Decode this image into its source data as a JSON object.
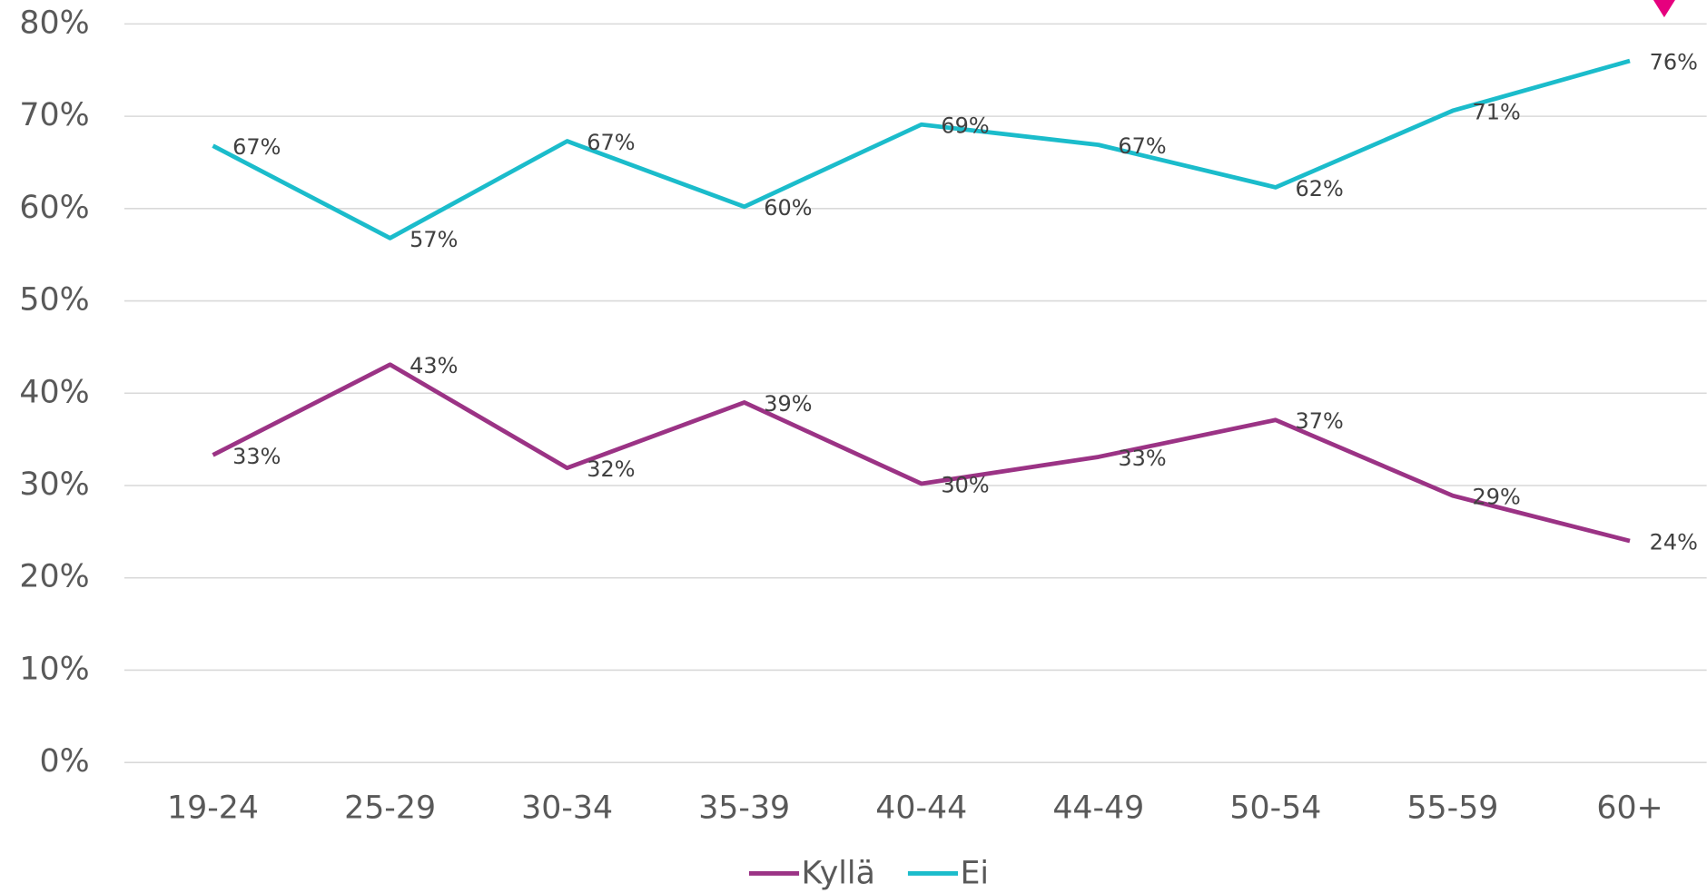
{
  "chart_data": {
    "type": "line",
    "categories": [
      "19-24",
      "25-29",
      "30-34",
      "35-39",
      "40-44",
      "44-49",
      "50-54",
      "55-59",
      "60+"
    ],
    "series": [
      {
        "name": "Kyllä",
        "color": "#9b3385",
        "values": [
          33.3,
          43.1,
          31.9,
          39.0,
          30.2,
          33.1,
          37.1,
          28.9,
          24.0
        ],
        "value_labels": [
          "33%",
          "43%",
          "32%",
          "39%",
          "30%",
          "33%",
          "37%",
          "29%",
          "24%"
        ]
      },
      {
        "name": "Ei",
        "color": "#1bbccb",
        "values": [
          66.8,
          56.8,
          67.3,
          60.2,
          69.1,
          66.9,
          62.3,
          70.6,
          76.0
        ],
        "value_labels": [
          "67%",
          "57%",
          "67%",
          "60%",
          "69%",
          "67%",
          "62%",
          "71%",
          "76%"
        ]
      }
    ],
    "ylim": [
      0,
      80
    ],
    "yticks": [
      {
        "value": 0,
        "label": "0%"
      },
      {
        "value": 10,
        "label": "10%"
      },
      {
        "value": 20,
        "label": "20%"
      },
      {
        "value": 30,
        "label": "30%"
      },
      {
        "value": 40,
        "label": "40%"
      },
      {
        "value": 50,
        "label": "50%"
      },
      {
        "value": 60,
        "label": "60%"
      },
      {
        "value": 70,
        "label": "70%"
      },
      {
        "value": 80,
        "label": "80%"
      }
    ],
    "grid": true,
    "legend": "bottom"
  }
}
